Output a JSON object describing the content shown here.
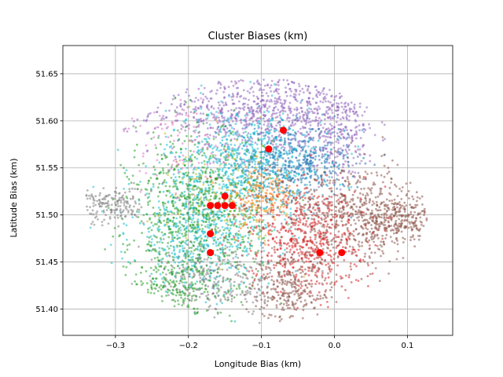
{
  "chart_data": {
    "type": "scatter",
    "title": "Cluster Biases (km)",
    "xlabel": "Longitude Bias (km)",
    "ylabel": "Latitude Bias (km)",
    "xlim": [
      -0.372,
      0.162
    ],
    "ylim": [
      51.372,
      51.68
    ],
    "grid": true,
    "x_ticks": [
      -0.3,
      -0.2,
      -0.1,
      0.0,
      0.1
    ],
    "x_tick_labels": [
      "−0.3",
      "−0.2",
      "−0.1",
      "0.0",
      "0.1"
    ],
    "y_ticks": [
      51.4,
      51.45,
      51.5,
      51.55,
      51.6,
      51.65
    ],
    "y_tick_labels": [
      "51.40",
      "51.45",
      "51.50",
      "51.55",
      "51.60",
      "51.65"
    ],
    "clusters": [
      {
        "color": "#9467bd",
        "cx": -0.1,
        "cy": 51.61,
        "sx": 0.075,
        "sy": 0.022,
        "n": 900
      },
      {
        "color": "#9467bd",
        "cx": 0.0,
        "cy": 51.585,
        "sx": 0.03,
        "sy": 0.025,
        "n": 300
      },
      {
        "color": "#1f77b4",
        "cx": -0.06,
        "cy": 51.555,
        "sx": 0.04,
        "sy": 0.02,
        "n": 500
      },
      {
        "color": "#17becf",
        "cx": -0.12,
        "cy": 51.555,
        "sx": 0.055,
        "sy": 0.03,
        "n": 700
      },
      {
        "color": "#17becf",
        "cx": -0.18,
        "cy": 51.48,
        "sx": 0.05,
        "sy": 0.03,
        "n": 600
      },
      {
        "color": "#ff7f0e",
        "cx": -0.1,
        "cy": 51.52,
        "sx": 0.025,
        "sy": 0.015,
        "n": 200
      },
      {
        "color": "#2ca02c",
        "cx": -0.19,
        "cy": 51.5,
        "sx": 0.045,
        "sy": 0.045,
        "n": 800
      },
      {
        "color": "#8c564b",
        "cx": 0.03,
        "cy": 51.5,
        "sx": 0.05,
        "sy": 0.025,
        "n": 600
      },
      {
        "color": "#8c564b",
        "cx": 0.09,
        "cy": 51.495,
        "sx": 0.03,
        "sy": 0.012,
        "n": 250
      },
      {
        "color": "#d62728",
        "cx": -0.04,
        "cy": 51.475,
        "sx": 0.04,
        "sy": 0.03,
        "n": 600
      },
      {
        "color": "#8c564b",
        "cx": -0.06,
        "cy": 51.42,
        "sx": 0.03,
        "sy": 0.02,
        "n": 300
      },
      {
        "color": "#7f7f7f",
        "cx": -0.31,
        "cy": 51.51,
        "sx": 0.025,
        "sy": 0.01,
        "n": 200
      },
      {
        "color": "#7f7f7f",
        "cx": -0.16,
        "cy": 51.43,
        "sx": 0.045,
        "sy": 0.02,
        "n": 300
      },
      {
        "color": "#2ca02c",
        "cx": -0.22,
        "cy": 51.425,
        "sx": 0.03,
        "sy": 0.018,
        "n": 200
      },
      {
        "color": "#bcbd22",
        "cx": -0.15,
        "cy": 51.52,
        "sx": 0.04,
        "sy": 0.03,
        "n": 120
      },
      {
        "color": "#e377c2",
        "cx": -0.2,
        "cy": 51.57,
        "sx": 0.04,
        "sy": 0.025,
        "n": 100
      }
    ],
    "centroids": [
      {
        "x": -0.07,
        "y": 51.59
      },
      {
        "x": -0.09,
        "y": 51.57
      },
      {
        "x": -0.15,
        "y": 51.52
      },
      {
        "x": -0.17,
        "y": 51.51
      },
      {
        "x": -0.16,
        "y": 51.51
      },
      {
        "x": -0.15,
        "y": 51.51
      },
      {
        "x": -0.14,
        "y": 51.51
      },
      {
        "x": -0.17,
        "y": 51.48
      },
      {
        "x": -0.17,
        "y": 51.46
      },
      {
        "x": -0.02,
        "y": 51.46
      },
      {
        "x": 0.01,
        "y": 51.46
      }
    ],
    "centroid_color": "#ff0000"
  }
}
